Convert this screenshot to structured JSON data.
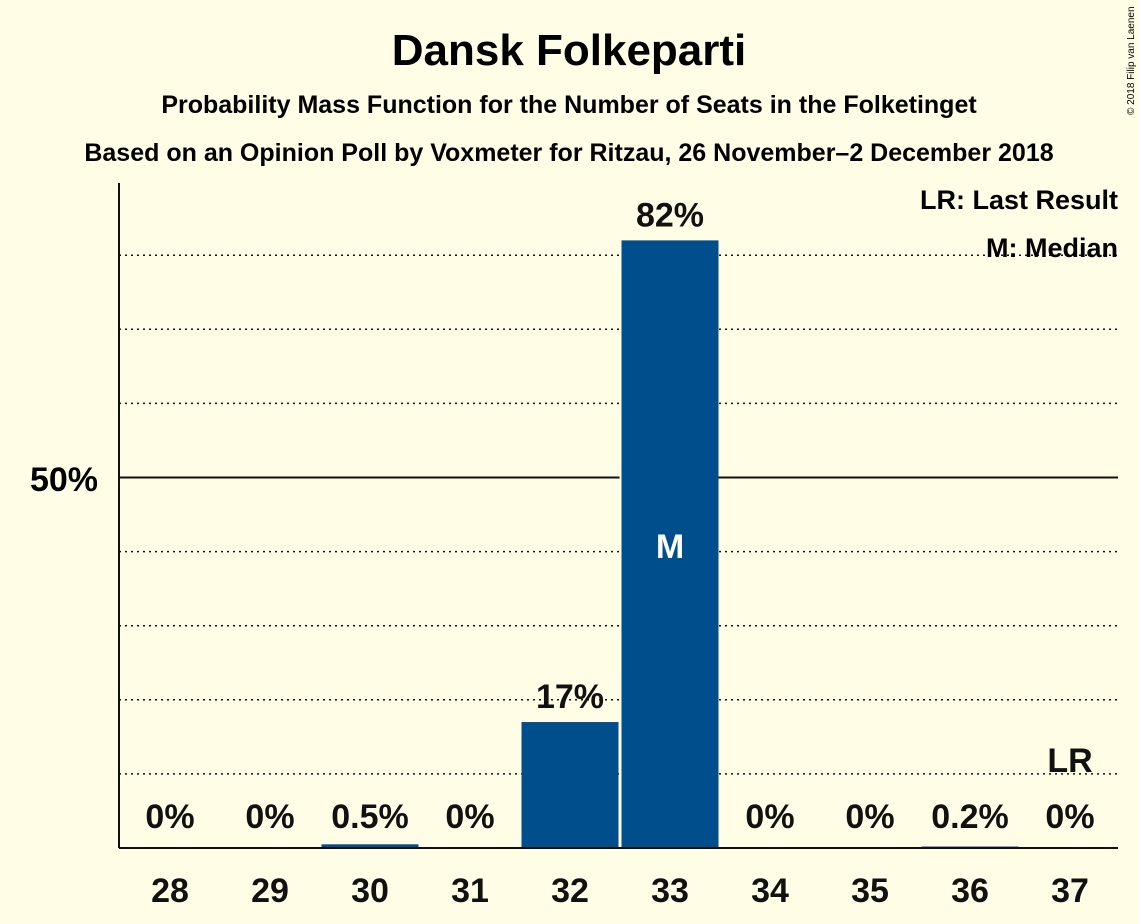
{
  "title": "Dansk Folkeparti",
  "subtitle": "Probability Mass Function for the Number of Seats in the Folketinget",
  "subtitle2": "Based on an Opinion Poll by Voxmeter for Ritzau, 26 November–2 December 2018",
  "copyright": "© 2018 Filip van Laenen",
  "legend": {
    "last_result": "LR: Last Result",
    "median": "M: Median"
  },
  "colors": {
    "background": "#FFFDE6",
    "bar": "#004F8C",
    "text": "#111111"
  },
  "chart_data": {
    "type": "bar",
    "categories": [
      "28",
      "29",
      "30",
      "31",
      "32",
      "33",
      "34",
      "35",
      "36",
      "37"
    ],
    "values": [
      0,
      0,
      0.5,
      0,
      17,
      82,
      0,
      0,
      0.2,
      0
    ],
    "data_labels": [
      "0%",
      "0%",
      "0.5%",
      "0%",
      "17%",
      "82%",
      "0%",
      "0%",
      "0.2%",
      "0%"
    ],
    "ylim": [
      0,
      90
    ],
    "y_major_tick": 50,
    "y_major_tick_label": "50%",
    "y_gridlines": [
      10,
      20,
      30,
      40,
      60,
      70,
      80
    ],
    "median_category": "33",
    "median_marker": "M",
    "last_result_category": "37",
    "last_result_marker": "LR",
    "grid": true,
    "legend_position": "top-right"
  }
}
